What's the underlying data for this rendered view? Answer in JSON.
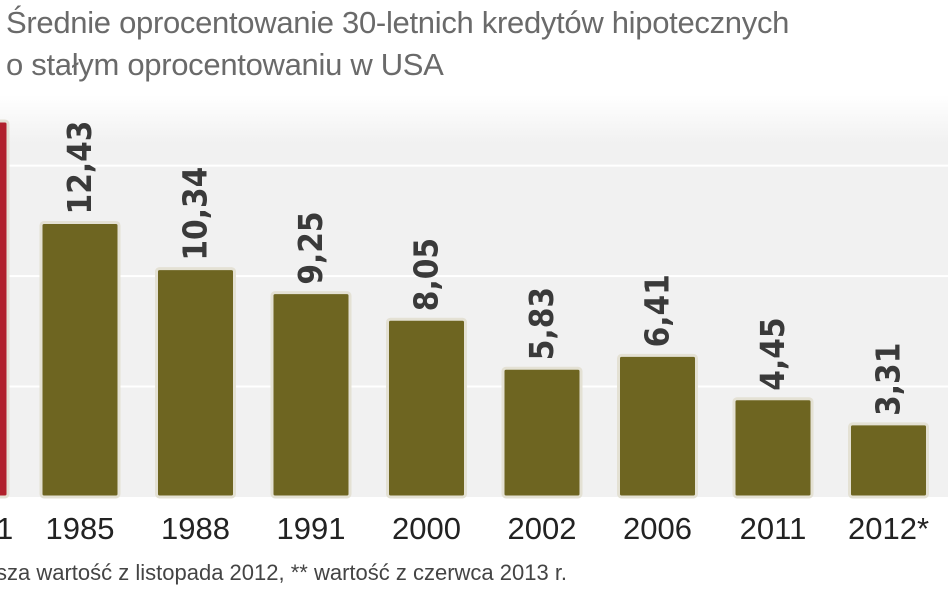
{
  "title": {
    "line1": "Średnie oprocentowanie 30-letnich kredytów hipotecznych",
    "line2": "o stałym oprocentowaniu w USA"
  },
  "chart_data": {
    "type": "bar",
    "categories": [
      "1985",
      "1988",
      "1991",
      "2000",
      "2002",
      "2006",
      "2011",
      "2012*"
    ],
    "values": [
      12.43,
      10.34,
      9.25,
      8.05,
      5.83,
      6.41,
      4.45,
      3.31
    ],
    "value_labels": [
      "12,43",
      "10,34",
      "9,25",
      "8,05",
      "5,83",
      "6,41",
      "4,45",
      "3,31"
    ],
    "partial_left_category": "1",
    "ylim": [
      0,
      18.2
    ],
    "gridlines": [
      5,
      10,
      15
    ],
    "grid": true,
    "legend": "none"
  },
  "footnote": "sza wartość z listopada 2012, ** wartość z czerwca 2013 r.",
  "colors": {
    "bar": "#6e6521",
    "bar_border": "#e4e1d4",
    "highlight_bar": "#b0202a",
    "plot_background": "#f1f1f1",
    "gridline": "#ffffff",
    "value_label": "#3a3a3a",
    "category_label": "#222222",
    "title": "#6a6a6a"
  }
}
